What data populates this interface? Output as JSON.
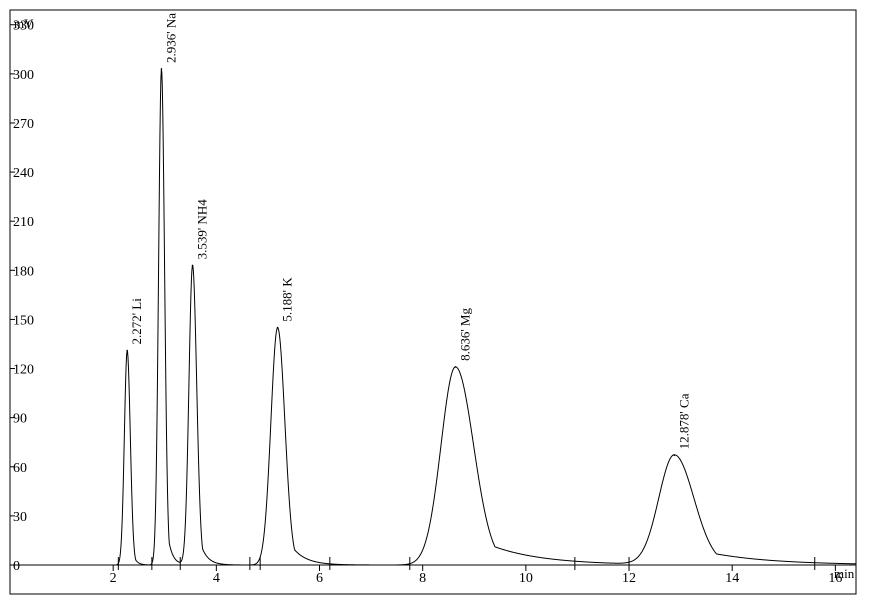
{
  "chart_data": {
    "type": "line",
    "title": "",
    "xlabel": "min",
    "ylabel": "mV",
    "xlim": [
      0,
      16.4
    ],
    "ylim": [
      0,
      339
    ],
    "grid": false,
    "legend": "none",
    "x_ticks": [
      2,
      4,
      6,
      8,
      10,
      12,
      14,
      16
    ],
    "y_ticks": [
      0,
      30,
      60,
      90,
      120,
      150,
      180,
      210,
      240,
      270,
      300,
      330
    ],
    "peaks": [
      {
        "time": 2.272,
        "label": "2.272' Li",
        "height": 131,
        "sigma_l": 0.055,
        "sigma_r": 0.06,
        "tail": 0.03
      },
      {
        "time": 2.936,
        "label": "2.936' Na",
        "height": 303,
        "sigma_l": 0.055,
        "sigma_r": 0.06,
        "tail": 0.04
      },
      {
        "time": 3.539,
        "label": "3.539' NH4",
        "height": 183,
        "sigma_l": 0.07,
        "sigma_r": 0.08,
        "tail": 0.06
      },
      {
        "time": 5.188,
        "label": "5.188' K",
        "height": 145,
        "sigma_l": 0.13,
        "sigma_r": 0.14,
        "tail": 0.12
      },
      {
        "time": 8.636,
        "label": "8.636' Mg",
        "height": 121,
        "sigma_l": 0.28,
        "sigma_r": 0.35,
        "tail": 0.45
      },
      {
        "time": 12.878,
        "label": "12.878' Ca",
        "height": 67,
        "sigma_l": 0.3,
        "sigma_r": 0.38,
        "tail": 0.55
      }
    ],
    "baseline_markers": [
      2.1,
      2.75,
      3.3,
      4.65,
      4.85,
      6.2,
      7.75,
      10.95,
      12.0,
      15.6
    ]
  },
  "colors": {
    "trace": "#000000",
    "axis": "#000000",
    "background": "#ffffff"
  }
}
